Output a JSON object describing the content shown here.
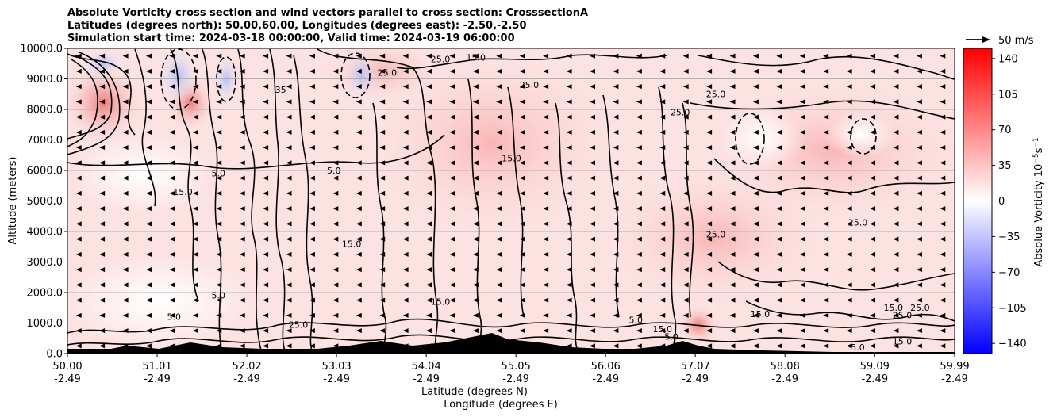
{
  "chart_data": {
    "type": "heatmap",
    "title_lines": [
      "Absolute Vorticity cross section and wind vectors parallel to cross section: CrosssectionA",
      "Latitudes (degrees north): 50.00,60.00, Longitudes (degrees east): -2.50,-2.50",
      "Simulation start time: 2024-03-18 00:00:00, Valid time: 2024-03-19 06:00:00"
    ],
    "ylabel": "Altitude (meters)",
    "xlabel_lat": "Latitude (degrees N)",
    "xlabel_lon": "Longitude (degrees E)",
    "ylim": [
      0,
      10000
    ],
    "y_ticks": [
      "0.0",
      "1000.0",
      "2000.0",
      "3000.0",
      "4000.0",
      "5000.0",
      "6000.0",
      "7000.0",
      "8000.0",
      "9000.0",
      "10000.0"
    ],
    "y_tick_values": [
      0,
      1000,
      2000,
      3000,
      4000,
      5000,
      6000,
      7000,
      8000,
      9000,
      10000
    ],
    "xlim": [
      50.0,
      59.99
    ],
    "x_tick_values": [
      50.0,
      51.01,
      52.02,
      53.03,
      54.04,
      55.05,
      56.06,
      57.07,
      58.08,
      59.09,
      59.99
    ],
    "x_ticks_lat": [
      "50.00",
      "51.01",
      "52.02",
      "53.03",
      "54.04",
      "55.05",
      "56.06",
      "57.07",
      "58.08",
      "59.09",
      "59.99"
    ],
    "x_ticks_lon": [
      "-2.49",
      "-2.49",
      "-2.49",
      "-2.49",
      "-2.49",
      "-2.49",
      "-2.49",
      "-2.49",
      "-2.49",
      "-2.49",
      "-2.49"
    ],
    "colorbar": {
      "label": "Absolue Vorticity 10",
      "label_exp": "−5",
      "label_unit": "s",
      "label_unit_exp": "−1",
      "range": [
        -150,
        150
      ],
      "ticks": [
        "140",
        "105",
        "70",
        "35",
        "0",
        "−35",
        "−70",
        "−105",
        "−140"
      ],
      "tick_values": [
        140,
        105,
        70,
        35,
        0,
        -35,
        -70,
        -105,
        -140
      ],
      "colors": {
        "min": "#0000ff",
        "mid": "#ffffff",
        "max": "#ff0000"
      }
    },
    "quiver_key": "50 m/s",
    "vector_direction": "northward-to-southward (pointing left)",
    "contour_labels": [
      {
        "text": "25.0",
        "lat": 54.2,
        "alt": 9550
      },
      {
        "text": "15.0",
        "lat": 54.6,
        "alt": 9600
      },
      {
        "text": "25.0",
        "lat": 53.6,
        "alt": 9100
      },
      {
        "text": "25.0",
        "lat": 55.2,
        "alt": 8700
      },
      {
        "text": "35",
        "lat": 52.4,
        "alt": 8550
      },
      {
        "text": "25.0",
        "lat": 57.3,
        "alt": 8400
      },
      {
        "text": "25.0",
        "lat": 56.9,
        "alt": 7800
      },
      {
        "text": "15.0",
        "lat": 55.0,
        "alt": 6300
      },
      {
        "text": "5.0",
        "lat": 51.7,
        "alt": 5800
      },
      {
        "text": "5.0",
        "lat": 53.0,
        "alt": 5900
      },
      {
        "text": "15.0",
        "lat": 51.3,
        "alt": 5200
      },
      {
        "text": "25.0",
        "lat": 58.9,
        "alt": 4200
      },
      {
        "text": "25.0",
        "lat": 57.3,
        "alt": 3800
      },
      {
        "text": "15.0",
        "lat": 53.2,
        "alt": 3500
      },
      {
        "text": "5.0",
        "lat": 51.7,
        "alt": 1800
      },
      {
        "text": "15.0",
        "lat": 54.2,
        "alt": 1600
      },
      {
        "text": "5.0",
        "lat": 56.4,
        "alt": 1000
      },
      {
        "text": "15.0",
        "lat": 57.8,
        "alt": 1200
      },
      {
        "text": "15.0",
        "lat": 59.3,
        "alt": 1400
      },
      {
        "text": "25.0",
        "lat": 59.6,
        "alt": 1400
      },
      {
        "text": "25.0",
        "lat": 59.4,
        "alt": 1150
      },
      {
        "text": "15.0",
        "lat": 59.4,
        "alt": 300
      },
      {
        "text": "5.0",
        "lat": 58.9,
        "alt": 100
      },
      {
        "text": "25.0",
        "lat": 52.6,
        "alt": 850
      },
      {
        "text": "5.0",
        "lat": 51.2,
        "alt": 1100
      },
      {
        "text": "15.0",
        "lat": 56.7,
        "alt": 700
      },
      {
        "text": "5.0",
        "lat": 56.8,
        "alt": 450
      }
    ]
  }
}
